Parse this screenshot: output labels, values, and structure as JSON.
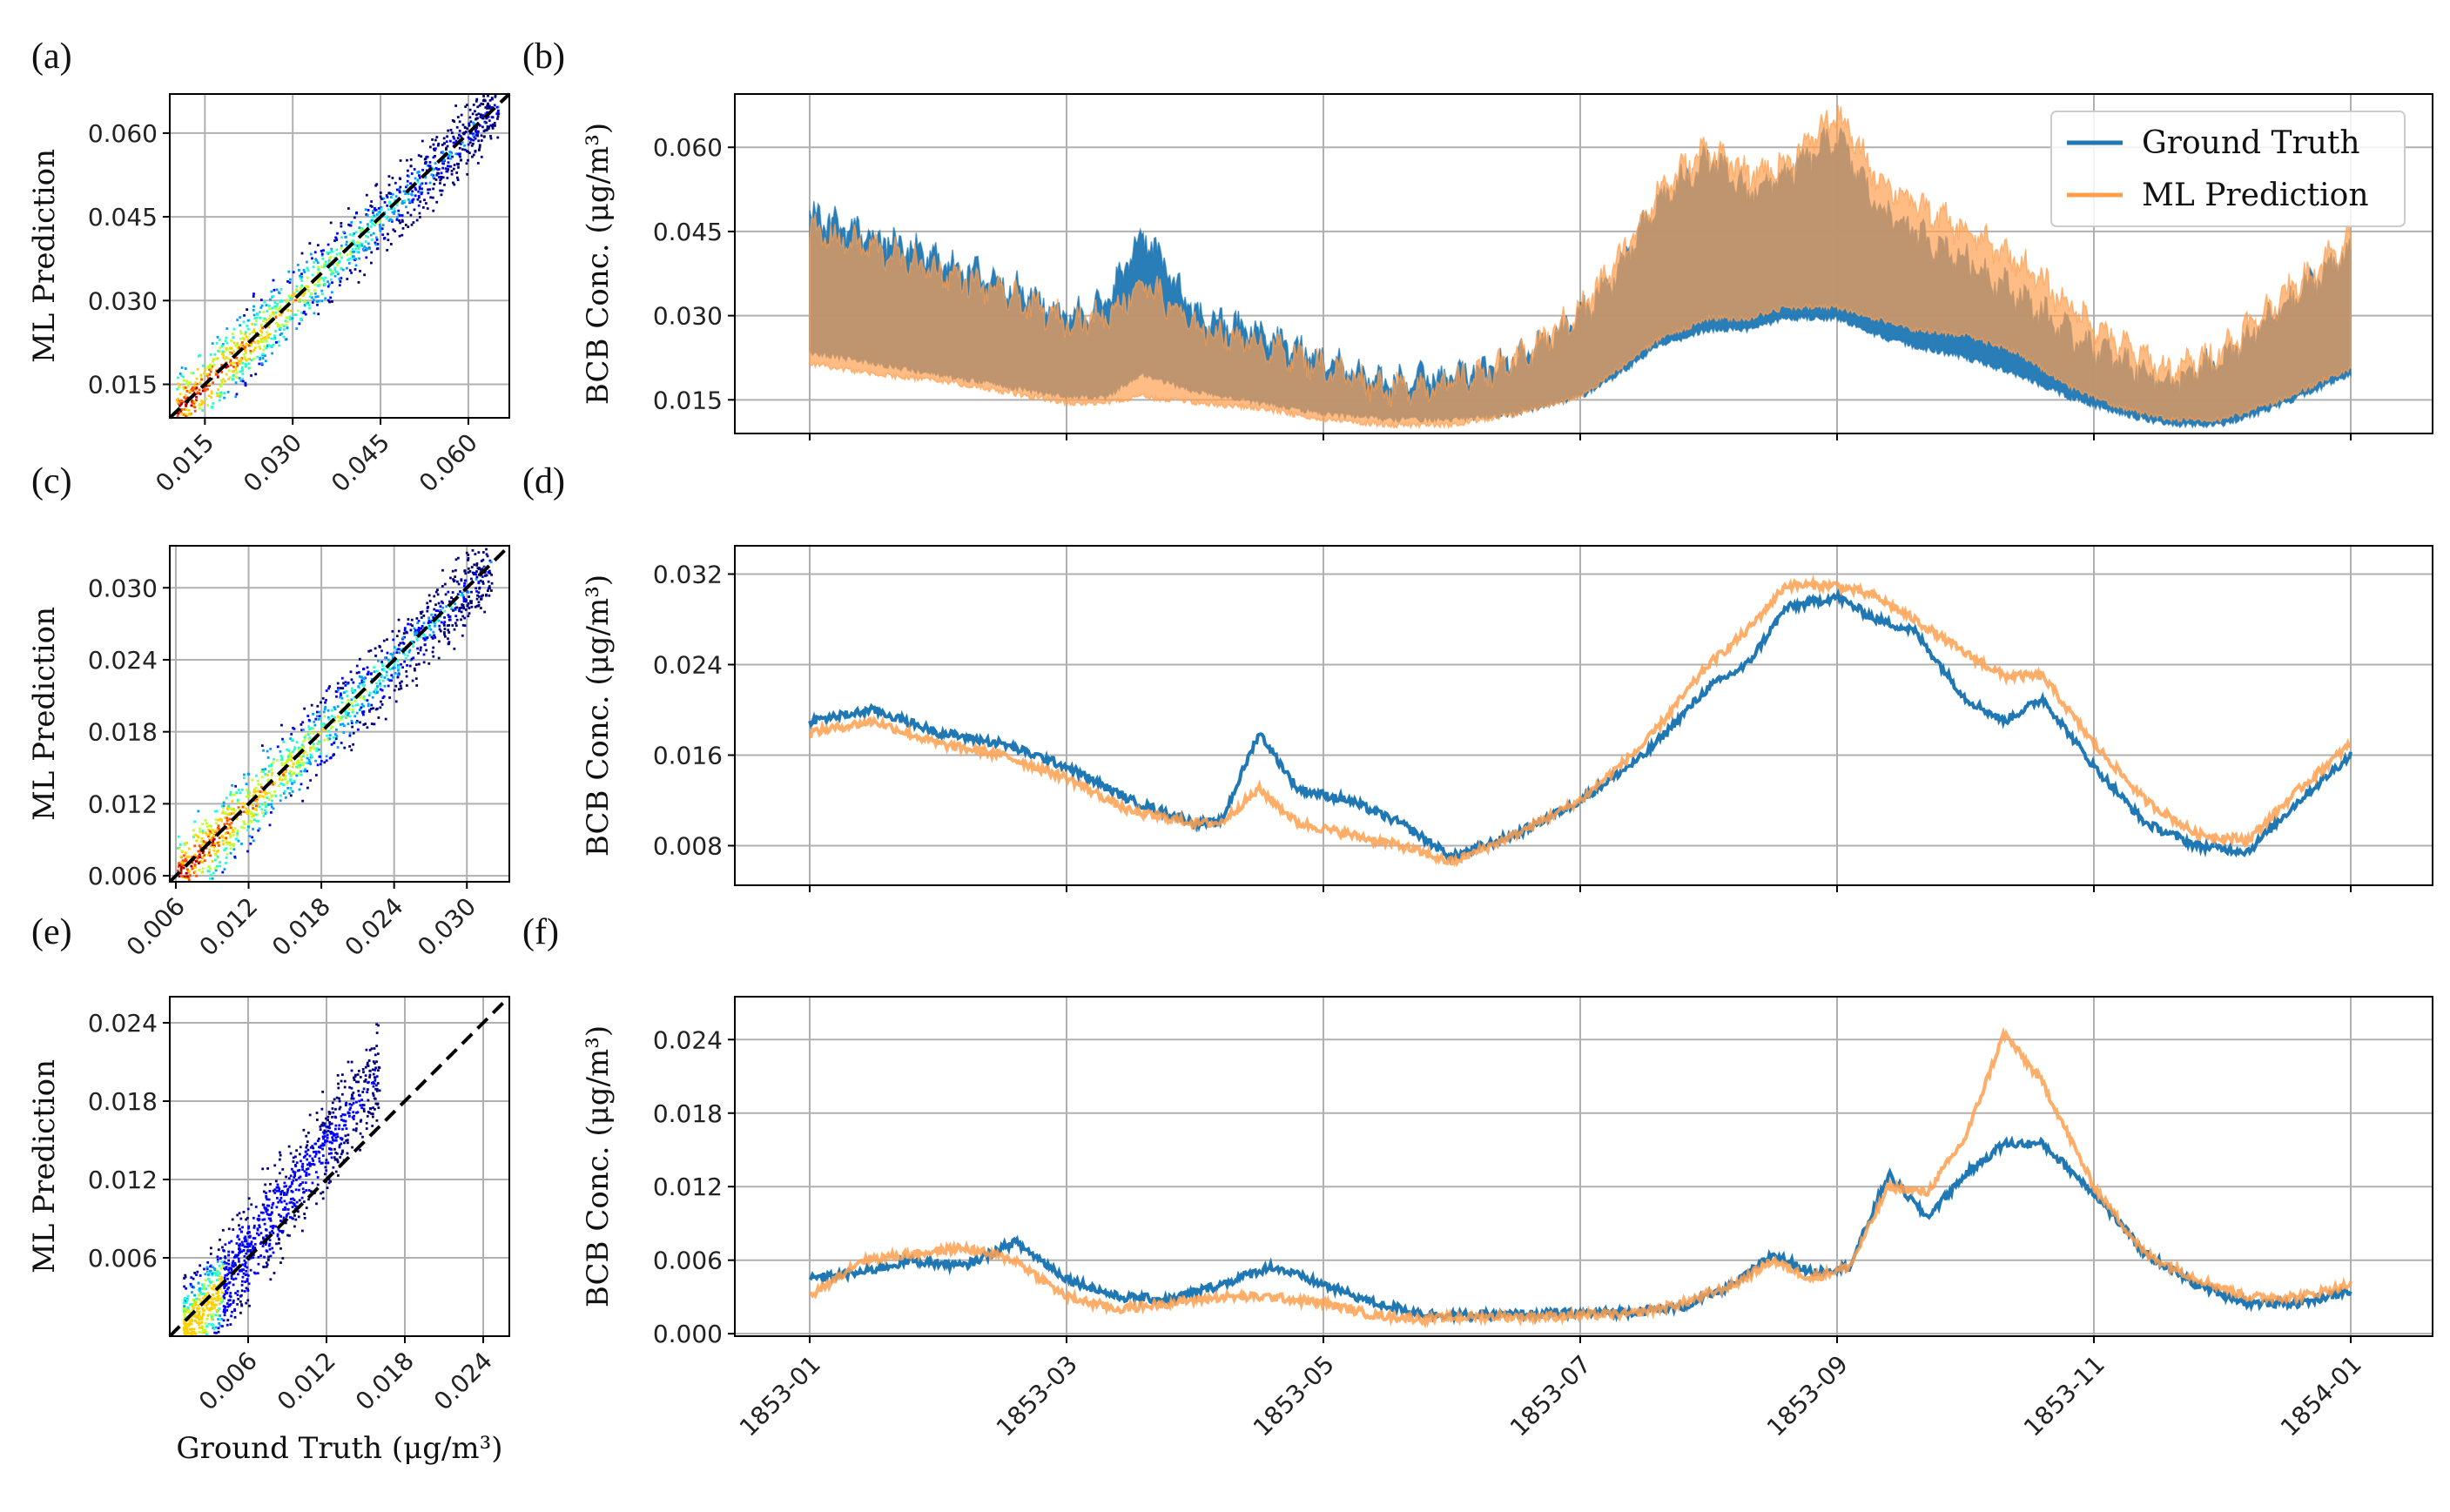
{
  "panel_labels": [
    "(a)",
    "(b)",
    "(c)",
    "(d)",
    "(e)",
    "(f)"
  ],
  "colors": {
    "ground_truth": "#1f77b4",
    "ml_prediction": "#ffa050",
    "overlap": "#9e6a3d",
    "diagonal": "#000000",
    "grid": "#b0b0b0",
    "heatmap_scale": [
      "#00007f",
      "#0000ff",
      "#00a0ff",
      "#20ffd0",
      "#c0ff30",
      "#ffd000",
      "#ff5000",
      "#b00000"
    ]
  },
  "chart_data": [
    {
      "id": "a",
      "type": "heatmap",
      "xlabel": "",
      "ylabel": "ML Prediction",
      "xlim": [
        0.009,
        0.067
      ],
      "ylim": [
        0.009,
        0.067
      ],
      "xticks": [
        "0.015",
        "0.030",
        "0.045",
        "0.060"
      ],
      "yticks": [
        "0.015",
        "0.030",
        "0.045",
        "0.060"
      ],
      "tick_values": [
        0.015,
        0.03,
        0.045,
        0.06
      ],
      "reference_line": "y = x (dashed)",
      "density_band": {
        "x": [
          0.01,
          0.065
        ],
        "spread": 0.006
      }
    },
    {
      "id": "b",
      "type": "area",
      "xlabel": "",
      "ylabel": "BCB Conc. (μg/m³)",
      "ylim": [
        0.009,
        0.0695
      ],
      "yticks": [
        "0.015",
        "0.030",
        "0.045",
        "0.060"
      ],
      "ytick_values": [
        0.015,
        0.03,
        0.045,
        0.06
      ],
      "x_dates": [
        "1853-01",
        "1853-03",
        "1853-05",
        "1853-07",
        "1853-09",
        "1853-11",
        "1854-01"
      ],
      "legend": {
        "entries": [
          "Ground Truth",
          "ML Prediction"
        ],
        "placement": "upper-right"
      },
      "series": [
        {
          "name": "Ground Truth",
          "t": [
            0,
            0.5,
            1,
            1.5,
            2,
            2.3,
            2.6,
            3,
            3.5,
            4,
            4.5,
            5,
            5.5,
            6,
            6.3,
            6.6,
            7,
            7.3,
            7.6,
            8,
            8.3,
            8.6,
            9,
            9.4,
            9.8,
            10.2,
            10.6,
            11,
            11.4,
            11.8,
            12
          ],
          "upper": [
            0.048,
            0.044,
            0.04,
            0.036,
            0.03,
            0.032,
            0.045,
            0.03,
            0.027,
            0.022,
            0.018,
            0.019,
            0.022,
            0.03,
            0.038,
            0.05,
            0.058,
            0.052,
            0.055,
            0.062,
            0.05,
            0.045,
            0.04,
            0.034,
            0.027,
            0.022,
            0.018,
            0.022,
            0.03,
            0.038,
            0.042
          ],
          "lower": [
            0.024,
            0.022,
            0.02,
            0.018,
            0.016,
            0.016,
            0.02,
            0.017,
            0.015,
            0.013,
            0.012,
            0.012,
            0.013,
            0.016,
            0.02,
            0.025,
            0.028,
            0.028,
            0.03,
            0.03,
            0.027,
            0.025,
            0.023,
            0.02,
            0.016,
            0.013,
            0.011,
            0.011,
            0.014,
            0.018,
            0.02
          ]
        },
        {
          "name": "ML Prediction",
          "t": [
            0,
            0.5,
            1,
            1.5,
            2,
            2.3,
            2.6,
            3,
            3.5,
            4,
            4.5,
            5,
            5.5,
            6,
            6.3,
            6.6,
            7,
            7.3,
            7.6,
            8,
            8.3,
            8.6,
            9,
            9.4,
            9.8,
            10.2,
            10.6,
            11,
            11.4,
            11.8,
            12
          ],
          "upper": [
            0.045,
            0.042,
            0.038,
            0.034,
            0.029,
            0.03,
            0.036,
            0.028,
            0.025,
            0.021,
            0.017,
            0.018,
            0.022,
            0.031,
            0.04,
            0.052,
            0.06,
            0.055,
            0.057,
            0.066,
            0.055,
            0.05,
            0.045,
            0.04,
            0.032,
            0.025,
            0.02,
            0.024,
            0.032,
            0.04,
            0.044
          ],
          "lower": [
            0.022,
            0.02,
            0.019,
            0.017,
            0.015,
            0.015,
            0.016,
            0.015,
            0.014,
            0.012,
            0.011,
            0.011,
            0.013,
            0.016,
            0.021,
            0.026,
            0.03,
            0.03,
            0.032,
            0.032,
            0.03,
            0.028,
            0.027,
            0.024,
            0.018,
            0.014,
            0.012,
            0.012,
            0.015,
            0.019,
            0.021
          ]
        }
      ]
    },
    {
      "id": "c",
      "type": "heatmap",
      "xlabel": "",
      "ylabel": "ML Prediction",
      "xlim": [
        0.0055,
        0.0335
      ],
      "ylim": [
        0.0055,
        0.0335
      ],
      "xticks": [
        "0.006",
        "0.012",
        "0.018",
        "0.024",
        "0.030"
      ],
      "yticks": [
        "0.006",
        "0.012",
        "0.018",
        "0.024",
        "0.030"
      ],
      "tick_values": [
        0.006,
        0.012,
        0.018,
        0.024,
        0.03
      ],
      "reference_line": "y = x (dashed)",
      "density_band": {
        "x": [
          0.006,
          0.032
        ],
        "spread": 0.003
      }
    },
    {
      "id": "d",
      "type": "line",
      "xlabel": "",
      "ylabel": "BCB Conc. (μg/m³)",
      "ylim": [
        0.0045,
        0.0345
      ],
      "yticks": [
        "0.008",
        "0.016",
        "0.024",
        "0.032"
      ],
      "ytick_values": [
        0.008,
        0.016,
        0.024,
        0.032
      ],
      "x_dates": [
        "1853-01",
        "1853-03",
        "1853-05",
        "1853-07",
        "1853-09",
        "1853-11",
        "1854-01"
      ],
      "series": [
        {
          "name": "Ground Truth",
          "t": [
            0,
            0.5,
            1,
            1.5,
            2,
            2.5,
            3,
            3.2,
            3.5,
            3.8,
            4.2,
            4.6,
            5,
            5.5,
            6,
            6.5,
            7,
            7.3,
            7.6,
            8,
            8.3,
            8.6,
            9,
            9.3,
            9.6,
            10,
            10.4,
            10.8,
            11.2,
            11.6,
            12
          ],
          "y": [
            0.019,
            0.02,
            0.018,
            0.017,
            0.015,
            0.012,
            0.01,
            0.01,
            0.018,
            0.013,
            0.012,
            0.01,
            0.007,
            0.009,
            0.012,
            0.016,
            0.022,
            0.024,
            0.029,
            0.03,
            0.028,
            0.027,
            0.021,
            0.019,
            0.021,
            0.015,
            0.01,
            0.008,
            0.0075,
            0.012,
            0.016
          ]
        },
        {
          "name": "ML Prediction",
          "t": [
            0,
            0.5,
            1,
            1.5,
            2,
            2.5,
            3,
            3.2,
            3.5,
            3.8,
            4.2,
            4.6,
            5,
            5.5,
            6,
            6.5,
            7,
            7.3,
            7.6,
            8,
            8.3,
            8.6,
            9,
            9.3,
            9.6,
            10,
            10.4,
            10.8,
            11.2,
            11.6,
            12
          ],
          "y": [
            0.018,
            0.019,
            0.017,
            0.016,
            0.014,
            0.011,
            0.01,
            0.01,
            0.013,
            0.01,
            0.009,
            0.008,
            0.0065,
            0.009,
            0.012,
            0.017,
            0.024,
            0.027,
            0.031,
            0.031,
            0.03,
            0.028,
            0.025,
            0.023,
            0.023,
            0.017,
            0.012,
            0.009,
            0.0085,
            0.013,
            0.017
          ]
        }
      ]
    },
    {
      "id": "e",
      "type": "heatmap",
      "xlabel": "Ground Truth (μg/m³)",
      "ylabel": "ML Prediction",
      "xlim": [
        0.0,
        0.026
      ],
      "ylim": [
        0.0,
        0.026
      ],
      "xticks": [
        "0.006",
        "0.012",
        "0.018",
        "0.024"
      ],
      "yticks": [
        "0.006",
        "0.012",
        "0.018",
        "0.024"
      ],
      "tick_values": [
        0.006,
        0.012,
        0.018,
        0.024
      ],
      "reference_line": "y = x (dashed)",
      "density_band": {
        "x": [
          0.001,
          0.016
        ],
        "spread": 0.0025
      }
    },
    {
      "id": "f",
      "type": "line",
      "xlabel": "",
      "ylabel": "BCB Conc. (μg/m³)",
      "ylim": [
        -0.0002,
        0.0275
      ],
      "yticks": [
        "0.000",
        "0.006",
        "0.012",
        "0.018",
        "0.024"
      ],
      "ytick_values": [
        0.0,
        0.006,
        0.012,
        0.018,
        0.024
      ],
      "x_dates": [
        "1853-01",
        "1853-03",
        "1853-05",
        "1853-07",
        "1853-09",
        "1853-11",
        "1854-01"
      ],
      "series": [
        {
          "name": "Ground Truth",
          "t": [
            0,
            0.4,
            0.8,
            1.2,
            1.6,
            2,
            2.4,
            2.8,
            3.2,
            3.6,
            4,
            4.4,
            4.8,
            5.2,
            5.6,
            6,
            6.4,
            6.8,
            7.2,
            7.5,
            7.8,
            8.1,
            8.4,
            8.7,
            9,
            9.3,
            9.6,
            10,
            10.4,
            10.8,
            11.2,
            11.6,
            12
          ],
          "y": [
            0.0045,
            0.005,
            0.006,
            0.0055,
            0.0075,
            0.0045,
            0.003,
            0.0028,
            0.004,
            0.0055,
            0.004,
            0.0025,
            0.0016,
            0.0015,
            0.0016,
            0.0017,
            0.0018,
            0.0022,
            0.004,
            0.0065,
            0.005,
            0.0055,
            0.013,
            0.0095,
            0.013,
            0.0155,
            0.0155,
            0.0115,
            0.0065,
            0.004,
            0.0025,
            0.0025,
            0.0035
          ]
        },
        {
          "name": "ML Prediction",
          "t": [
            0,
            0.4,
            0.8,
            1.2,
            1.6,
            2,
            2.4,
            2.8,
            3.2,
            3.6,
            4,
            4.4,
            4.8,
            5.2,
            5.6,
            6,
            6.4,
            6.8,
            7.2,
            7.5,
            7.8,
            8.1,
            8.4,
            8.7,
            9,
            9.3,
            9.6,
            10,
            10.4,
            10.8,
            11.2,
            11.6,
            12
          ],
          "y": [
            0.003,
            0.006,
            0.0065,
            0.007,
            0.006,
            0.003,
            0.002,
            0.0025,
            0.003,
            0.003,
            0.0025,
            0.0015,
            0.0012,
            0.0014,
            0.0014,
            0.0015,
            0.0016,
            0.0025,
            0.004,
            0.006,
            0.0045,
            0.0055,
            0.012,
            0.0115,
            0.016,
            0.0245,
            0.0205,
            0.012,
            0.0065,
            0.0045,
            0.003,
            0.003,
            0.004
          ]
        }
      ]
    }
  ]
}
